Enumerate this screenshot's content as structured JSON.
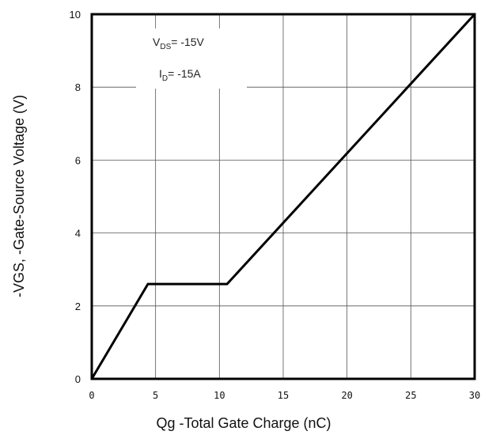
{
  "chart_data": {
    "type": "line",
    "title": "",
    "xlabel": "Qg -Total Gate Charge (nC)",
    "ylabel": "-VGS, -Gate-Source Voltage (V)",
    "xlim": [
      0,
      30
    ],
    "ylim": [
      0,
      10
    ],
    "xticks": [
      0,
      5,
      10,
      15,
      20,
      25,
      30
    ],
    "yticks": [
      0,
      2,
      4,
      6,
      8,
      10
    ],
    "grid": true,
    "series": [
      {
        "x": [
          0,
          4.4,
          10.6,
          30
        ],
        "y": [
          0,
          2.6,
          2.6,
          10
        ]
      }
    ],
    "annotations": [
      {
        "main": "V",
        "sub": "DS",
        "rest": "= -15V"
      },
      {
        "main": "I",
        "sub": "D",
        "rest": "= -15A"
      }
    ],
    "colors": {
      "line": "#000000",
      "grid": "#555555",
      "frame": "#000000"
    }
  }
}
